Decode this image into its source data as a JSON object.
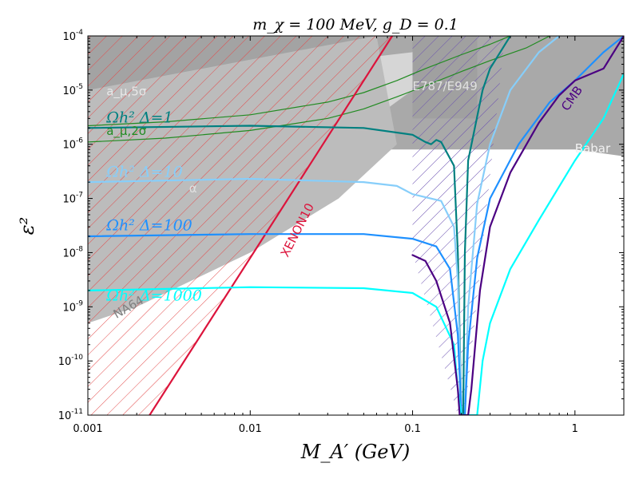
{
  "chart_data": {
    "type": "line",
    "title": "m_χ = 100 MeV, g_D = 0.1",
    "xlabel": "M_A′ (GeV)",
    "ylabel": "ε²",
    "xscale": "log",
    "yscale": "log",
    "xlim": [
      0.001,
      2
    ],
    "ylim": [
      1e-11,
      0.0001
    ],
    "x_ticks": [
      {
        "value": 0.001,
        "label": "0.001"
      },
      {
        "value": 0.01,
        "label": "0.01"
      },
      {
        "value": 0.1,
        "label": "0.1"
      },
      {
        "value": 1,
        "label": "1"
      }
    ],
    "y_ticks": [
      {
        "value": 0.0001,
        "label": "10",
        "exp": "-4"
      },
      {
        "value": 1e-05,
        "label": "10",
        "exp": "-5"
      },
      {
        "value": 1e-06,
        "label": "10",
        "exp": "-6"
      },
      {
        "value": 1e-07,
        "label": "10",
        "exp": "-7"
      },
      {
        "value": 1e-08,
        "label": "10",
        "exp": "-8"
      },
      {
        "value": 1e-09,
        "label": "10",
        "exp": "-9"
      },
      {
        "value": 1e-10,
        "label": "10",
        "exp": "-10"
      },
      {
        "value": 1e-11,
        "label": "10",
        "exp": "-11"
      }
    ],
    "regions": [
      {
        "name": "Babar",
        "color": "#a9a9a9",
        "polygon": [
          [
            0.001,
            0.0001
          ],
          [
            2,
            0.0001
          ],
          [
            2,
            6e-07
          ],
          [
            1,
            8e-07
          ],
          [
            0.001,
            8e-07
          ]
        ]
      },
      {
        "name": "E787/E949",
        "color": "#a0a0a0",
        "polygon": [
          [
            0.1,
            0.0001
          ],
          [
            0.25,
            0.0001
          ],
          [
            0.25,
            3e-06
          ],
          [
            0.1,
            3e-06
          ]
        ]
      },
      {
        "name": "a_μ,5σ",
        "color": "#a3a3a3",
        "polygon": [
          [
            0.001,
            0.0001
          ],
          [
            0.05,
            0.0001
          ],
          [
            0.05,
            4e-06
          ],
          [
            0.001,
            2e-06
          ]
        ]
      },
      {
        "name": "a_μ,2σ band",
        "color": "#d6d6d6",
        "polygon": [
          [
            0.001,
            1e-05
          ],
          [
            0.1,
            5e-05
          ],
          [
            0.1,
            1e-05
          ],
          [
            0.02,
            3e-07
          ],
          [
            0.005,
            3e-08
          ],
          [
            0.001,
            2e-08
          ]
        ]
      },
      {
        "name": "NA64",
        "color": "#bcbcbc",
        "polygon": [
          [
            0.001,
            1e-05
          ],
          [
            0.06,
            0.0001
          ],
          [
            0.08,
            1e-06
          ],
          [
            0.035,
            1e-07
          ],
          [
            0.01,
            1e-08
          ],
          [
            0.002,
            1e-09
          ],
          [
            0.001,
            5e-10
          ]
        ]
      }
    ],
    "hatched_regions": [
      {
        "name": "XENON10",
        "color": "#e34a4a",
        "polygon": [
          [
            0.001,
            0.0001
          ],
          [
            0.075,
            0.0001
          ],
          [
            0.0024,
            1e-11
          ],
          [
            0.001,
            1e-11
          ]
        ]
      },
      {
        "name": "E787/E949 hatch",
        "color": "#6a4fb0",
        "polygon": [
          [
            0.1,
            0.0001
          ],
          [
            0.37,
            0.0001
          ],
          [
            0.21,
            1e-11
          ],
          [
            0.19,
            1e-11
          ],
          [
            0.1,
            1e-08
          ]
        ]
      }
    ],
    "series": [
      {
        "name": "a_μ,2σ upper",
        "color": "#228b22",
        "width": 1.2,
        "points": [
          [
            0.001,
            2.2e-06
          ],
          [
            0.003,
            2.6e-06
          ],
          [
            0.01,
            3.5e-06
          ],
          [
            0.03,
            6e-06
          ],
          [
            0.05,
            9e-06
          ],
          [
            0.08,
            1.5e-05
          ],
          [
            0.12,
            2.5e-05
          ],
          [
            0.2,
            4.5e-05
          ],
          [
            0.3,
            7e-05
          ],
          [
            0.4,
            0.0001
          ]
        ]
      },
      {
        "name": "a_μ,2σ lower",
        "color": "#228b22",
        "width": 1.2,
        "points": [
          [
            0.001,
            1.1e-06
          ],
          [
            0.003,
            1.3e-06
          ],
          [
            0.01,
            1.8e-06
          ],
          [
            0.03,
            3e-06
          ],
          [
            0.05,
            4.5e-06
          ],
          [
            0.08,
            7.5e-06
          ],
          [
            0.12,
            1.2e-05
          ],
          [
            0.2,
            2.2e-05
          ],
          [
            0.3,
            3.5e-05
          ],
          [
            0.5,
            6e-05
          ],
          [
            0.7,
            0.0001
          ]
        ]
      },
      {
        "name": "XENON10",
        "color": "#dc143c",
        "width": 2.2,
        "points": [
          [
            0.0024,
            1e-11
          ],
          [
            0.075,
            0.0001
          ]
        ]
      },
      {
        "name": "Ωh² Δ=1",
        "color": "#008080",
        "width": 2.2,
        "points": [
          [
            0.001,
            2e-06
          ],
          [
            0.01,
            2.2e-06
          ],
          [
            0.05,
            2e-06
          ],
          [
            0.1,
            1.5e-06
          ],
          [
            0.12,
            1.1e-06
          ],
          [
            0.13,
            1e-06
          ],
          [
            0.14,
            1.2e-06
          ],
          [
            0.15,
            1.1e-06
          ],
          [
            0.18,
            4e-07
          ],
          [
            0.19,
            1e-08
          ],
          [
            0.2,
            1e-11
          ],
          [
            0.205,
            1e-11
          ],
          [
            0.21,
            1e-08
          ],
          [
            0.22,
            5e-07
          ],
          [
            0.27,
            1e-05
          ],
          [
            0.3,
            2.5e-05
          ],
          [
            0.4,
            0.0001
          ]
        ]
      },
      {
        "name": "Ωh² Δ=10",
        "color": "#87cefa",
        "width": 2.2,
        "points": [
          [
            0.001,
            2e-07
          ],
          [
            0.01,
            2.3e-07
          ],
          [
            0.05,
            2e-07
          ],
          [
            0.08,
            1.7e-07
          ],
          [
            0.1,
            1.2e-07
          ],
          [
            0.15,
            9e-08
          ],
          [
            0.18,
            3e-08
          ],
          [
            0.19,
            3e-09
          ],
          [
            0.2,
            1e-11
          ],
          [
            0.21,
            1e-11
          ],
          [
            0.22,
            1e-09
          ],
          [
            0.25,
            8e-08
          ],
          [
            0.3,
            1e-06
          ],
          [
            0.4,
            1e-05
          ],
          [
            0.6,
            5e-05
          ],
          [
            0.8,
            0.0001
          ]
        ]
      },
      {
        "name": "Ωh² Δ=100",
        "color": "#1e90ff",
        "width": 2.2,
        "points": [
          [
            0.001,
            2e-08
          ],
          [
            0.01,
            2.2e-08
          ],
          [
            0.05,
            2.2e-08
          ],
          [
            0.1,
            1.8e-08
          ],
          [
            0.14,
            1.3e-08
          ],
          [
            0.17,
            5e-09
          ],
          [
            0.19,
            3e-10
          ],
          [
            0.2,
            1e-11
          ],
          [
            0.21,
            1e-11
          ],
          [
            0.22,
            2e-10
          ],
          [
            0.25,
            8e-09
          ],
          [
            0.3,
            1e-07
          ],
          [
            0.45,
            1e-06
          ],
          [
            0.7,
            6e-06
          ],
          [
            1,
            1.5e-05
          ],
          [
            1.5,
            5e-05
          ],
          [
            2,
            0.0001
          ]
        ]
      },
      {
        "name": "Ωh² Δ=1000",
        "color": "#00ffff",
        "width": 2.2,
        "points": [
          [
            0.001,
            2e-09
          ],
          [
            0.01,
            2.3e-09
          ],
          [
            0.05,
            2.2e-09
          ],
          [
            0.1,
            1.8e-09
          ],
          [
            0.14,
            1e-09
          ],
          [
            0.18,
            2e-10
          ],
          [
            0.19,
            3e-11
          ],
          [
            0.2,
            1e-11
          ],
          [
            0.25,
            1e-11
          ],
          [
            0.27,
            1e-10
          ],
          [
            0.3,
            5e-10
          ],
          [
            0.4,
            5e-09
          ],
          [
            0.6,
            4e-08
          ],
          [
            1,
            5e-07
          ],
          [
            1.5,
            3e-06
          ],
          [
            2,
            2e-05
          ]
        ]
      },
      {
        "name": "CMB",
        "color": "#4b0082",
        "width": 2.2,
        "points": [
          [
            0.1,
            9e-09
          ],
          [
            0.12,
            7e-09
          ],
          [
            0.14,
            3e-09
          ],
          [
            0.17,
            5e-10
          ],
          [
            0.19,
            3e-11
          ],
          [
            0.195,
            1e-11
          ],
          [
            0.22,
            1e-11
          ],
          [
            0.23,
            3e-11
          ],
          [
            0.26,
            2e-09
          ],
          [
            0.3,
            3e-08
          ],
          [
            0.4,
            3e-07
          ],
          [
            0.6,
            2.5e-06
          ],
          [
            0.8,
            8e-06
          ],
          [
            1,
            1.5e-05
          ],
          [
            1.5,
            2.5e-05
          ],
          [
            2,
            0.0001
          ]
        ]
      }
    ],
    "annotations": [
      {
        "text": "a_μ,5σ",
        "x": 0.0013,
        "y": 8e-06,
        "color": "#e8e8e8",
        "size": "small"
      },
      {
        "text": "a_μ,2σ",
        "x": 0.0013,
        "y": 1.5e-06,
        "color": "#228b22",
        "size": "small"
      },
      {
        "text": "Ωh² Δ=1",
        "x": 0.0013,
        "y": 2.5e-06,
        "color": "#008080",
        "size": "large"
      },
      {
        "text": "Ωh² Δ=10",
        "x": 0.0013,
        "y": 2.5e-07,
        "color": "#87cefa",
        "size": "large"
      },
      {
        "text": "Ωh² Δ=100",
        "x": 0.0013,
        "y": 2.6e-08,
        "color": "#1e90ff",
        "size": "large"
      },
      {
        "text": "Ωh² Δ=1000",
        "x": 0.0013,
        "y": 1.3e-09,
        "color": "#00ffff",
        "size": "large"
      },
      {
        "text": "E787/E949",
        "x": 0.1,
        "y": 1e-05,
        "color": "#e0e0e0",
        "size": "medium"
      },
      {
        "text": "Babar",
        "x": 1,
        "y": 7e-07,
        "color": "#f2f2f2",
        "size": "medium"
      },
      {
        "text": "CMB",
        "x": 0.9,
        "y": 4e-06,
        "color": "#4b0082",
        "size": "medium",
        "rotate": -55
      },
      {
        "text": "XENON10",
        "x": 0.017,
        "y": 8e-09,
        "color": "#dc143c",
        "size": "small",
        "rotate": -63
      },
      {
        "text": "NA64",
        "x": 0.0015,
        "y": 6e-10,
        "color": "#808080",
        "size": "medium",
        "rotate": -30
      },
      {
        "text": "α",
        "x": 0.0042,
        "y": 1.3e-07,
        "color": "#e0e0e0",
        "size": "small"
      }
    ]
  }
}
